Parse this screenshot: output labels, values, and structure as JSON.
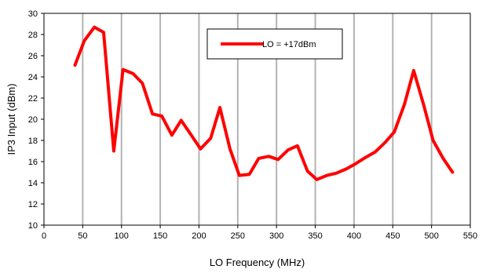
{
  "chart_data": {
    "type": "line",
    "title": "",
    "xlabel": "LO Frequency (MHz)",
    "ylabel": "IP3 Input (dBm)",
    "xlim": [
      0,
      550
    ],
    "ylim": [
      10,
      30
    ],
    "xticks": [
      0,
      50,
      100,
      150,
      200,
      250,
      300,
      350,
      400,
      450,
      500,
      550
    ],
    "yticks": [
      10,
      12,
      14,
      16,
      18,
      20,
      22,
      24,
      26,
      28,
      30
    ],
    "grid": "vertical",
    "legend_position": "top-center",
    "series": [
      {
        "name": "LO = +17dBm",
        "color": "#ff0000",
        "x": [
          40,
          52,
          65,
          77,
          90,
          102,
          115,
          127,
          140,
          152,
          165,
          177,
          190,
          202,
          215,
          227,
          240,
          252,
          265,
          277,
          290,
          302,
          315,
          327,
          340,
          352,
          365,
          377,
          390,
          402,
          415,
          427,
          440,
          452,
          465,
          477,
          490,
          502,
          515,
          527
        ],
        "y": [
          25.1,
          27.4,
          28.7,
          28.2,
          17.0,
          24.7,
          24.3,
          23.4,
          20.5,
          20.3,
          18.5,
          19.9,
          18.5,
          17.2,
          18.2,
          21.1,
          17.2,
          14.7,
          14.8,
          16.3,
          16.5,
          16.2,
          17.1,
          17.5,
          15.1,
          14.3,
          14.7,
          14.9,
          15.3,
          15.8,
          16.4,
          16.9,
          17.8,
          18.8,
          21.4,
          24.6,
          21.3,
          18.0,
          16.3,
          15.0
        ]
      }
    ]
  }
}
